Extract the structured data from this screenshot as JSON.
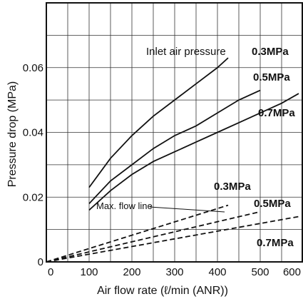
{
  "chart_data": {
    "type": "line",
    "xlabel": "Air flow rate (ℓ/min (ANR))",
    "ylabel": "Pressure drop (MPa)",
    "xlim": [
      0,
      600
    ],
    "ylim": [
      0,
      0.08
    ],
    "x_ticks": [
      "0",
      "100",
      "200",
      "300",
      "400",
      "500",
      "600"
    ],
    "y_ticks": [
      "0",
      "0.02",
      "0.04",
      "0.06"
    ],
    "grid": true,
    "annotations": {
      "inlet": "Inlet air pressure",
      "maxflow": "Max. flow line",
      "upper_03": "0.3MPa",
      "upper_05": "0.5MPa",
      "upper_07": "0.7MPa",
      "lower_03": "0.3MPa",
      "lower_05": "0.5MPa",
      "lower_07": "0.7MPa"
    },
    "series": [
      {
        "name": "0.3MPa",
        "style": "solid",
        "x": [
          100,
          150,
          200,
          250,
          300,
          350,
          400,
          425
        ],
        "y": [
          0.023,
          0.032,
          0.039,
          0.045,
          0.05,
          0.055,
          0.06,
          0.063
        ]
      },
      {
        "name": "0.5MPa",
        "style": "solid",
        "x": [
          100,
          150,
          200,
          250,
          300,
          350,
          400,
          450,
          500
        ],
        "y": [
          0.018,
          0.025,
          0.03,
          0.035,
          0.039,
          0.042,
          0.046,
          0.05,
          0.053
        ]
      },
      {
        "name": "0.7MPa",
        "style": "solid",
        "x": [
          100,
          150,
          200,
          250,
          300,
          350,
          400,
          450,
          500,
          550,
          590
        ],
        "y": [
          0.016,
          0.022,
          0.027,
          0.031,
          0.034,
          0.037,
          0.04,
          0.043,
          0.046,
          0.049,
          0.052
        ]
      },
      {
        "name": "0.3MPa",
        "style": "dashed",
        "x": [
          0,
          425
        ],
        "y": [
          0.0,
          0.0175
        ]
      },
      {
        "name": "0.5MPa",
        "style": "dashed",
        "x": [
          0,
          500
        ],
        "y": [
          0.0,
          0.0155
        ]
      },
      {
        "name": "0.7MPa",
        "style": "dashed",
        "x": [
          0,
          590
        ],
        "y": [
          0.0,
          0.014
        ]
      }
    ]
  }
}
